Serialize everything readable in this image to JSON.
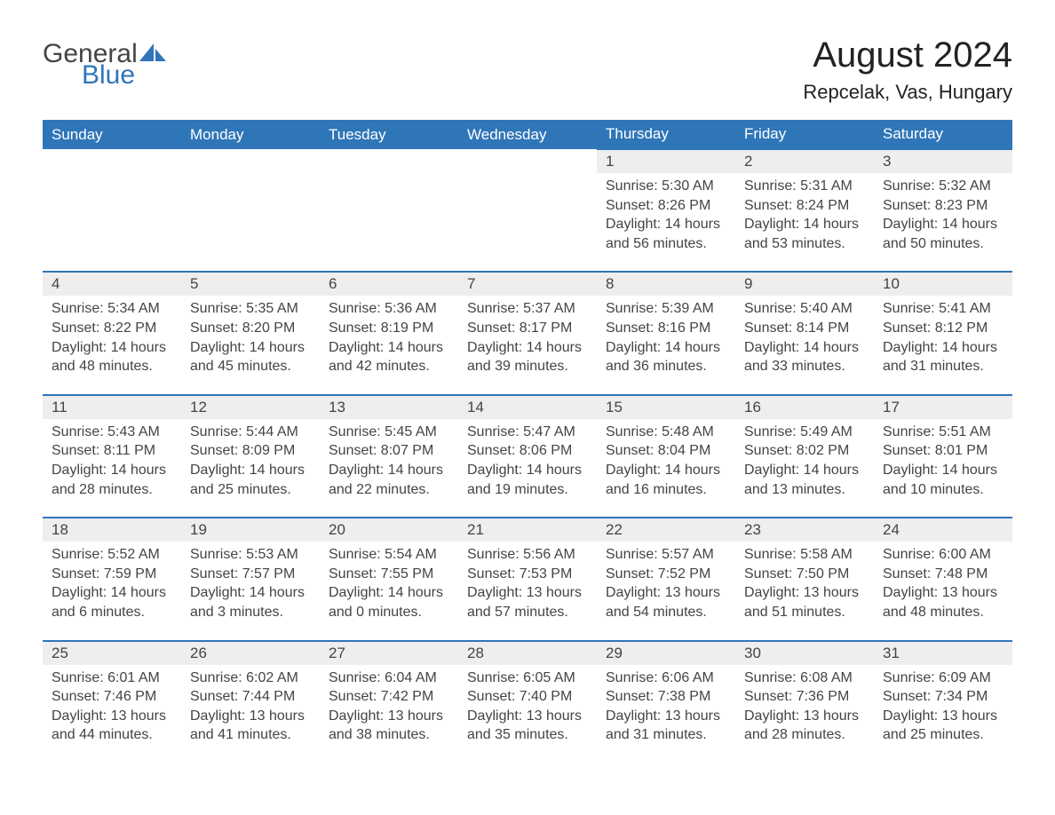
{
  "logo": {
    "text1": "General",
    "text2": "Blue",
    "accent_color": "#2f76b8"
  },
  "title": "August 2024",
  "location": "Repcelak, Vas, Hungary",
  "weekday_labels": [
    "Sunday",
    "Monday",
    "Tuesday",
    "Wednesday",
    "Thursday",
    "Friday",
    "Saturday"
  ],
  "colors": {
    "header_bg": "#2f76b8",
    "header_fg": "#ffffff",
    "row_sep": "#2f76b8",
    "daynum_bg": "#eeeeee",
    "text": "#444444",
    "body_bg": "#ffffff"
  },
  "fonts": {
    "title_size_pt": 30,
    "location_size_pt": 16,
    "weekday_size_pt": 13,
    "daynum_size_pt": 13,
    "body_size_pt": 12,
    "family": "Arial"
  },
  "layout": {
    "columns": 7,
    "rows": 5,
    "leading_blanks": 4
  },
  "days": [
    {
      "n": 1,
      "sunrise": "5:30 AM",
      "sunset": "8:26 PM",
      "daylight": "14 hours and 56 minutes."
    },
    {
      "n": 2,
      "sunrise": "5:31 AM",
      "sunset": "8:24 PM",
      "daylight": "14 hours and 53 minutes."
    },
    {
      "n": 3,
      "sunrise": "5:32 AM",
      "sunset": "8:23 PM",
      "daylight": "14 hours and 50 minutes."
    },
    {
      "n": 4,
      "sunrise": "5:34 AM",
      "sunset": "8:22 PM",
      "daylight": "14 hours and 48 minutes."
    },
    {
      "n": 5,
      "sunrise": "5:35 AM",
      "sunset": "8:20 PM",
      "daylight": "14 hours and 45 minutes."
    },
    {
      "n": 6,
      "sunrise": "5:36 AM",
      "sunset": "8:19 PM",
      "daylight": "14 hours and 42 minutes."
    },
    {
      "n": 7,
      "sunrise": "5:37 AM",
      "sunset": "8:17 PM",
      "daylight": "14 hours and 39 minutes."
    },
    {
      "n": 8,
      "sunrise": "5:39 AM",
      "sunset": "8:16 PM",
      "daylight": "14 hours and 36 minutes."
    },
    {
      "n": 9,
      "sunrise": "5:40 AM",
      "sunset": "8:14 PM",
      "daylight": "14 hours and 33 minutes."
    },
    {
      "n": 10,
      "sunrise": "5:41 AM",
      "sunset": "8:12 PM",
      "daylight": "14 hours and 31 minutes."
    },
    {
      "n": 11,
      "sunrise": "5:43 AM",
      "sunset": "8:11 PM",
      "daylight": "14 hours and 28 minutes."
    },
    {
      "n": 12,
      "sunrise": "5:44 AM",
      "sunset": "8:09 PM",
      "daylight": "14 hours and 25 minutes."
    },
    {
      "n": 13,
      "sunrise": "5:45 AM",
      "sunset": "8:07 PM",
      "daylight": "14 hours and 22 minutes."
    },
    {
      "n": 14,
      "sunrise": "5:47 AM",
      "sunset": "8:06 PM",
      "daylight": "14 hours and 19 minutes."
    },
    {
      "n": 15,
      "sunrise": "5:48 AM",
      "sunset": "8:04 PM",
      "daylight": "14 hours and 16 minutes."
    },
    {
      "n": 16,
      "sunrise": "5:49 AM",
      "sunset": "8:02 PM",
      "daylight": "14 hours and 13 minutes."
    },
    {
      "n": 17,
      "sunrise": "5:51 AM",
      "sunset": "8:01 PM",
      "daylight": "14 hours and 10 minutes."
    },
    {
      "n": 18,
      "sunrise": "5:52 AM",
      "sunset": "7:59 PM",
      "daylight": "14 hours and 6 minutes."
    },
    {
      "n": 19,
      "sunrise": "5:53 AM",
      "sunset": "7:57 PM",
      "daylight": "14 hours and 3 minutes."
    },
    {
      "n": 20,
      "sunrise": "5:54 AM",
      "sunset": "7:55 PM",
      "daylight": "14 hours and 0 minutes."
    },
    {
      "n": 21,
      "sunrise": "5:56 AM",
      "sunset": "7:53 PM",
      "daylight": "13 hours and 57 minutes."
    },
    {
      "n": 22,
      "sunrise": "5:57 AM",
      "sunset": "7:52 PM",
      "daylight": "13 hours and 54 minutes."
    },
    {
      "n": 23,
      "sunrise": "5:58 AM",
      "sunset": "7:50 PM",
      "daylight": "13 hours and 51 minutes."
    },
    {
      "n": 24,
      "sunrise": "6:00 AM",
      "sunset": "7:48 PM",
      "daylight": "13 hours and 48 minutes."
    },
    {
      "n": 25,
      "sunrise": "6:01 AM",
      "sunset": "7:46 PM",
      "daylight": "13 hours and 44 minutes."
    },
    {
      "n": 26,
      "sunrise": "6:02 AM",
      "sunset": "7:44 PM",
      "daylight": "13 hours and 41 minutes."
    },
    {
      "n": 27,
      "sunrise": "6:04 AM",
      "sunset": "7:42 PM",
      "daylight": "13 hours and 38 minutes."
    },
    {
      "n": 28,
      "sunrise": "6:05 AM",
      "sunset": "7:40 PM",
      "daylight": "13 hours and 35 minutes."
    },
    {
      "n": 29,
      "sunrise": "6:06 AM",
      "sunset": "7:38 PM",
      "daylight": "13 hours and 31 minutes."
    },
    {
      "n": 30,
      "sunrise": "6:08 AM",
      "sunset": "7:36 PM",
      "daylight": "13 hours and 28 minutes."
    },
    {
      "n": 31,
      "sunrise": "6:09 AM",
      "sunset": "7:34 PM",
      "daylight": "13 hours and 25 minutes."
    }
  ],
  "field_labels": {
    "sunrise": "Sunrise: ",
    "sunset": "Sunset: ",
    "daylight": "Daylight: "
  }
}
